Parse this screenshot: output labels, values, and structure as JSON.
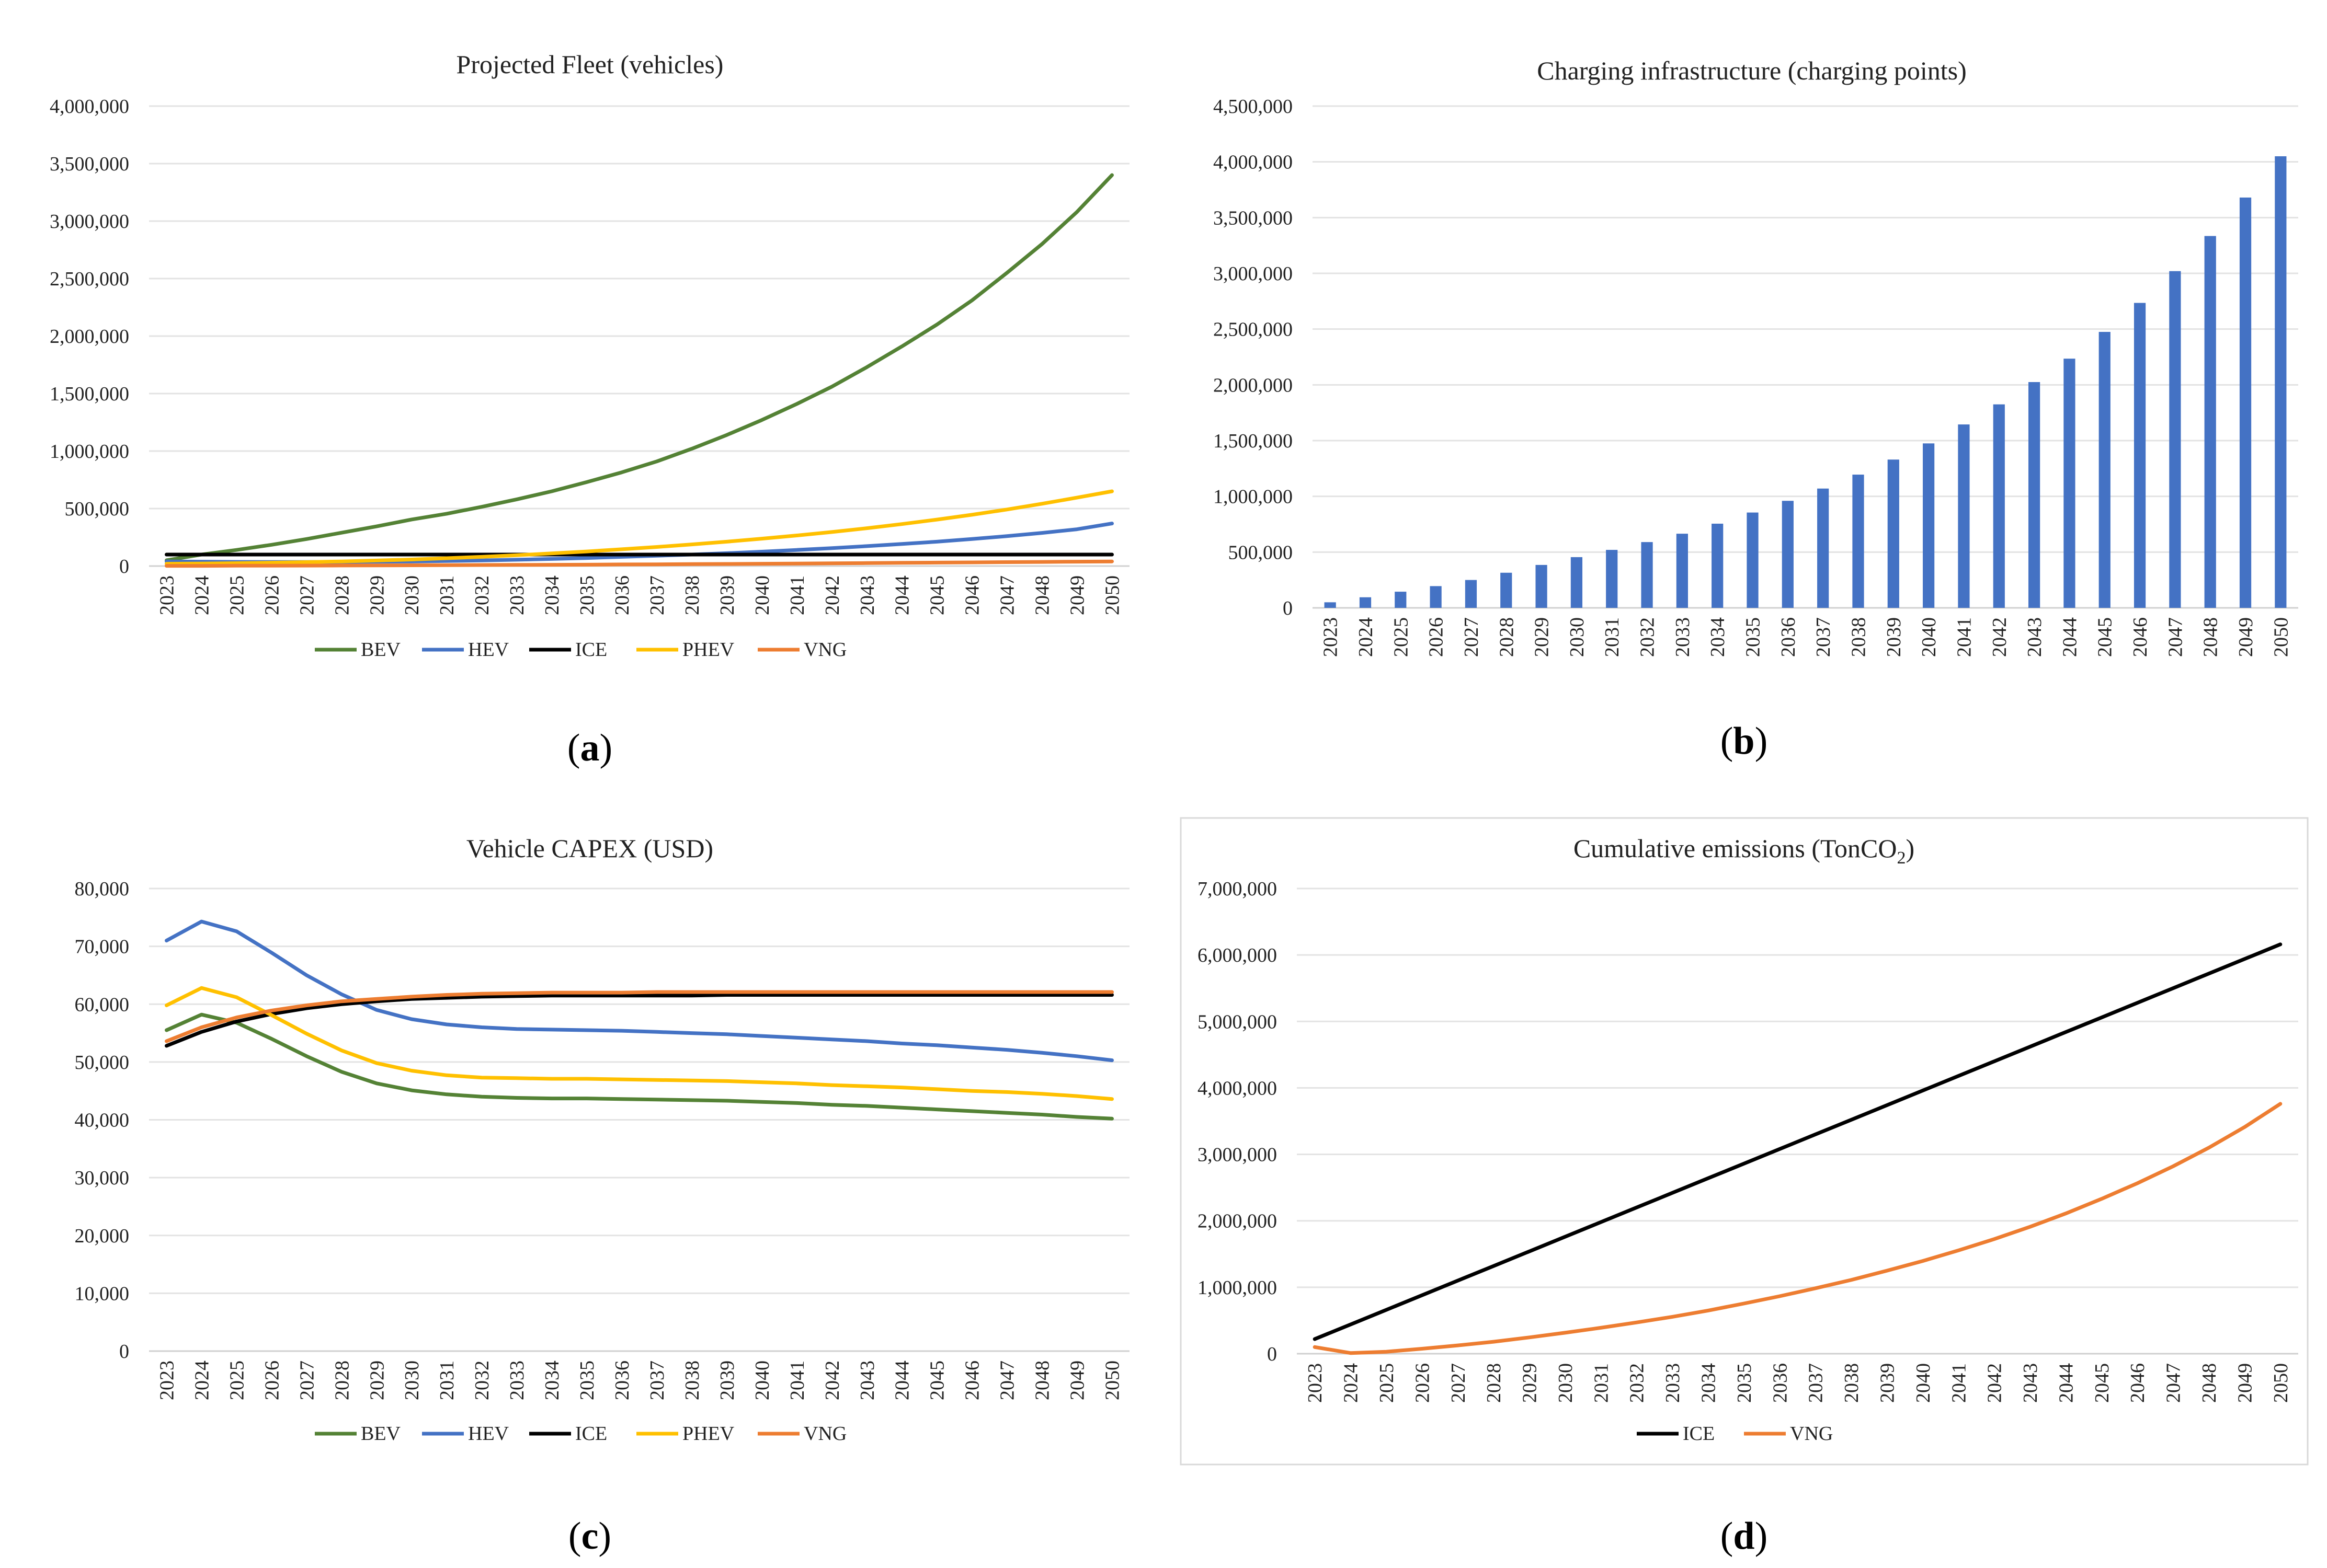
{
  "chart_data": [
    {
      "type": "line",
      "title": "Projected Fleet (vehicles)",
      "caption_letter": "a",
      "categories": [
        "2023",
        "2024",
        "2025",
        "2026",
        "2027",
        "2028",
        "2029",
        "2030",
        "2031",
        "2032",
        "2033",
        "2034",
        "2035",
        "2036",
        "2037",
        "2038",
        "2039",
        "2040",
        "2041",
        "2042",
        "2043",
        "2044",
        "2045",
        "2046",
        "2047",
        "2048",
        "2049",
        "2050"
      ],
      "ylim": [
        0,
        4000000
      ],
      "yticks": [
        0,
        500000,
        1000000,
        1500000,
        2000000,
        2500000,
        3000000,
        3500000,
        4000000
      ],
      "ytick_labels": [
        "0",
        "500,000",
        "1,000,000",
        "1,500,000",
        "2,000,000",
        "2,500,000",
        "3,000,000",
        "3,500,000",
        "4,000,000"
      ],
      "grid": true,
      "legend": "bottom",
      "series": [
        {
          "name": "BEV",
          "color": "#548235",
          "values": [
            50000,
            100000,
            140000,
            185000,
            235000,
            290000,
            345000,
            405000,
            455000,
            515000,
            580000,
            650000,
            730000,
            815000,
            910000,
            1020000,
            1140000,
            1270000,
            1410000,
            1560000,
            1730000,
            1910000,
            2100000,
            2310000,
            2550000,
            2800000,
            3080000,
            3400000
          ]
        },
        {
          "name": "HEV",
          "color": "#4472C4",
          "values": [
            40000,
            38000,
            36000,
            35000,
            35000,
            36000,
            38000,
            40000,
            44000,
            49000,
            55000,
            62000,
            70000,
            80000,
            90000,
            100000,
            112000,
            125000,
            140000,
            156000,
            173000,
            192000,
            212000,
            235000,
            260000,
            288000,
            320000,
            370000
          ]
        },
        {
          "name": "ICE",
          "color": "#000000",
          "values": [
            100000,
            100000,
            100000,
            100000,
            100000,
            100000,
            100000,
            100000,
            100000,
            100000,
            100000,
            100000,
            100000,
            100000,
            100000,
            100000,
            100000,
            100000,
            100000,
            100000,
            100000,
            100000,
            100000,
            100000,
            100000,
            100000,
            100000,
            100000
          ]
        },
        {
          "name": "PHEV",
          "color": "#FFC000",
          "values": [
            20000,
            22000,
            25000,
            29000,
            34000,
            40000,
            48000,
            57000,
            68000,
            80000,
            94000,
            110000,
            127000,
            146000,
            166000,
            188000,
            212000,
            238000,
            266000,
            296000,
            329000,
            365000,
            404000,
            446000,
            492000,
            542000,
            595000,
            650000
          ]
        },
        {
          "name": "VNG",
          "color": "#ED7D31",
          "values": [
            2000,
            2000,
            3000,
            3000,
            4000,
            5000,
            6000,
            7000,
            8000,
            9000,
            10000,
            11000,
            12000,
            14000,
            15000,
            17000,
            18000,
            20000,
            22000,
            24000,
            26000,
            28000,
            30000,
            32000,
            34000,
            36000,
            38000,
            40000
          ]
        }
      ]
    },
    {
      "type": "bar",
      "title": "Charging infrastructure (charging points)",
      "caption_letter": "b",
      "categories": [
        "2023",
        "2024",
        "2025",
        "2026",
        "2027",
        "2028",
        "2029",
        "2030",
        "2031",
        "2032",
        "2033",
        "2034",
        "2035",
        "2036",
        "2037",
        "2038",
        "2039",
        "2040",
        "2041",
        "2042",
        "2043",
        "2044",
        "2045",
        "2046",
        "2047",
        "2048",
        "2049",
        "2050"
      ],
      "ylim": [
        0,
        4500000
      ],
      "yticks": [
        0,
        500000,
        1000000,
        1500000,
        2000000,
        2500000,
        3000000,
        3500000,
        4000000,
        4500000
      ],
      "ytick_labels": [
        "0",
        "500,000",
        "1,000,000",
        "1,500,000",
        "2,000,000",
        "2,500,000",
        "3,000,000",
        "3,500,000",
        "4,000,000",
        "4,500,000"
      ],
      "grid": true,
      "series": [
        {
          "name": "Charging points",
          "color": "#4472C4",
          "values": [
            50000,
            95000,
            145000,
            195000,
            250000,
            315000,
            385000,
            455000,
            520000,
            590000,
            665000,
            755000,
            855000,
            960000,
            1070000,
            1195000,
            1330000,
            1475000,
            1645000,
            1825000,
            2025000,
            2235000,
            2475000,
            2735000,
            3020000,
            3335000,
            3680000,
            4050000
          ]
        }
      ]
    },
    {
      "type": "line",
      "title": "Vehicle CAPEX (USD)",
      "caption_letter": "c",
      "categories": [
        "2023",
        "2024",
        "2025",
        "2026",
        "2027",
        "2028",
        "2029",
        "2030",
        "2031",
        "2032",
        "2033",
        "2034",
        "2035",
        "2036",
        "2037",
        "2038",
        "2039",
        "2040",
        "2041",
        "2042",
        "2043",
        "2044",
        "2045",
        "2046",
        "2047",
        "2048",
        "2049",
        "2050"
      ],
      "ylim": [
        0,
        80000
      ],
      "yticks": [
        0,
        10000,
        20000,
        30000,
        40000,
        50000,
        60000,
        70000,
        80000
      ],
      "ytick_labels": [
        "0",
        "10,000",
        "20,000",
        "30,000",
        "40,000",
        "50,000",
        "60,000",
        "70,000",
        "80,000"
      ],
      "grid": true,
      "legend": "bottom",
      "series": [
        {
          "name": "BEV",
          "color": "#548235",
          "values": [
            55500,
            58200,
            56800,
            54000,
            51000,
            48300,
            46300,
            45100,
            44400,
            44000,
            43800,
            43700,
            43700,
            43600,
            43500,
            43400,
            43300,
            43100,
            42900,
            42600,
            42400,
            42100,
            41800,
            41500,
            41200,
            40900,
            40500,
            40200
          ]
        },
        {
          "name": "HEV",
          "color": "#4472C4",
          "values": [
            71000,
            74300,
            72600,
            68900,
            65000,
            61700,
            59000,
            57400,
            56500,
            56000,
            55700,
            55600,
            55500,
            55400,
            55200,
            55000,
            54800,
            54500,
            54200,
            53900,
            53600,
            53200,
            52900,
            52500,
            52100,
            51600,
            51000,
            50300
          ]
        },
        {
          "name": "ICE",
          "color": "#000000",
          "values": [
            52800,
            55200,
            57000,
            58300,
            59300,
            60000,
            60500,
            60900,
            61100,
            61300,
            61400,
            61500,
            61500,
            61500,
            61500,
            61500,
            61600,
            61600,
            61600,
            61600,
            61600,
            61600,
            61600,
            61600,
            61600,
            61600,
            61600,
            61600
          ]
        },
        {
          "name": "PHEV",
          "color": "#FFC000",
          "values": [
            59800,
            62800,
            61200,
            58100,
            54900,
            52000,
            49800,
            48500,
            47700,
            47300,
            47200,
            47100,
            47100,
            47000,
            46900,
            46800,
            46700,
            46500,
            46300,
            46000,
            45800,
            45600,
            45300,
            45000,
            44800,
            44500,
            44100,
            43600
          ]
        },
        {
          "name": "VNG",
          "color": "#ED7D31",
          "values": [
            53600,
            56000,
            57700,
            58900,
            59800,
            60500,
            60900,
            61300,
            61600,
            61800,
            61900,
            62000,
            62000,
            62000,
            62100,
            62100,
            62100,
            62100,
            62100,
            62100,
            62100,
            62100,
            62100,
            62100,
            62100,
            62100,
            62100,
            62100
          ]
        }
      ]
    },
    {
      "type": "line",
      "title": "Cumulative emissions (TonCO",
      "title_sub": "2",
      "title_end": ")",
      "caption_letter": "d",
      "categories": [
        "2023",
        "2024",
        "2025",
        "2026",
        "2027",
        "2028",
        "2029",
        "2030",
        "2031",
        "2032",
        "2033",
        "2034",
        "2035",
        "2036",
        "2037",
        "2038",
        "2039",
        "2040",
        "2041",
        "2042",
        "2043",
        "2044",
        "2045",
        "2046",
        "2047",
        "2048",
        "2049",
        "2050"
      ],
      "ylim": [
        0,
        7000000
      ],
      "yticks": [
        0,
        1000000,
        2000000,
        3000000,
        4000000,
        5000000,
        6000000,
        7000000
      ],
      "ytick_labels": [
        "0",
        "1,000,000",
        "2,000,000",
        "3,000,000",
        "4,000,000",
        "5,000,000",
        "6,000,000",
        "7,000,000"
      ],
      "grid": true,
      "legend": "bottom",
      "series": [
        {
          "name": "ICE",
          "color": "#000000",
          "values": [
            220000,
            440000,
            660000,
            880000,
            1100000,
            1320000,
            1540000,
            1760000,
            1980000,
            2200000,
            2420000,
            2640000,
            2860000,
            3080000,
            3300000,
            3520000,
            3740000,
            3960000,
            4180000,
            4400000,
            4620000,
            4840000,
            5060000,
            5280000,
            5500000,
            5720000,
            5940000,
            6160000
          ]
        },
        {
          "name": "VNG",
          "color": "#ED7D31",
          "values": [
            100000,
            10000,
            30000,
            75000,
            125000,
            180000,
            245000,
            315000,
            390000,
            470000,
            555000,
            650000,
            755000,
            865000,
            985000,
            1110000,
            1250000,
            1395000,
            1555000,
            1725000,
            1910000,
            2110000,
            2330000,
            2565000,
            2820000,
            3100000,
            3410000,
            3760000
          ]
        }
      ]
    }
  ]
}
